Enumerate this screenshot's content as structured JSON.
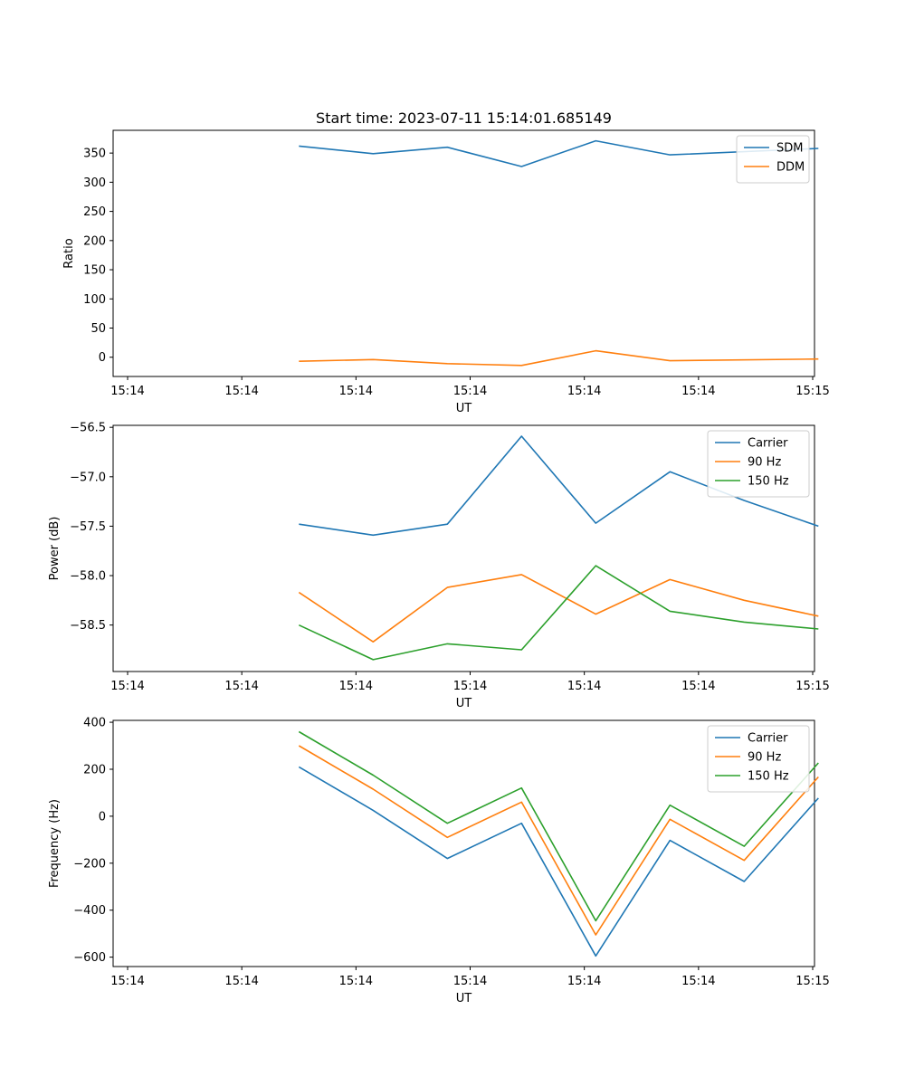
{
  "chart_data": [
    {
      "type": "line",
      "title": "Start time: 2023-07-11 15:14:01.685149",
      "xlabel": "UT",
      "ylabel": "Ratio",
      "x_tick_labels": [
        "15:14",
        "15:14",
        "15:14",
        "15:14",
        "15:14",
        "15:14",
        "15:15"
      ],
      "y_ticks": [
        0,
        50,
        100,
        150,
        200,
        250,
        300,
        350
      ],
      "y_tick_labels": [
        "0",
        "50",
        "100",
        "150",
        "200",
        "250",
        "300",
        "350"
      ],
      "ylim": [
        -33,
        389
      ],
      "series": [
        {
          "name": "SDM",
          "color": "#1f77b4",
          "points": [
            [
              1.5,
              362
            ],
            [
              2.15,
              349
            ],
            [
              2.8,
              360
            ],
            [
              3.45,
              327
            ],
            [
              4.1,
              371
            ],
            [
              4.75,
              347
            ],
            [
              6.05,
              358
            ]
          ]
        },
        {
          "name": "DDM",
          "color": "#ff7f0e",
          "points": [
            [
              1.5,
              -7
            ],
            [
              2.15,
              -4
            ],
            [
              2.8,
              -11
            ],
            [
              3.45,
              -14
            ],
            [
              4.1,
              11
            ],
            [
              4.75,
              -6
            ],
            [
              6.05,
              -3
            ]
          ]
        }
      ]
    },
    {
      "type": "line",
      "title": "",
      "xlabel": "UT",
      "ylabel": "Power (dB)",
      "x_tick_labels": [
        "15:14",
        "15:14",
        "15:14",
        "15:14",
        "15:14",
        "15:14",
        "15:15"
      ],
      "y_ticks": [
        -58.5,
        -58.0,
        -57.5,
        -57.0,
        -56.5
      ],
      "y_tick_labels": [
        "−58.5",
        "−58.0",
        "−57.5",
        "−57.0",
        "−56.5"
      ],
      "ylim": [
        -58.97,
        -56.48
      ],
      "series": [
        {
          "name": "Carrier",
          "color": "#1f77b4",
          "points": [
            [
              1.5,
              -57.48
            ],
            [
              2.15,
              -57.59
            ],
            [
              2.8,
              -57.48
            ],
            [
              3.45,
              -56.59
            ],
            [
              4.1,
              -57.47
            ],
            [
              4.75,
              -56.95
            ],
            [
              5.4,
              -57.24
            ],
            [
              6.05,
              -57.5
            ]
          ]
        },
        {
          "name": "90 Hz",
          "color": "#ff7f0e",
          "points": [
            [
              1.5,
              -58.17
            ],
            [
              2.15,
              -58.67
            ],
            [
              2.8,
              -58.12
            ],
            [
              3.45,
              -57.99
            ],
            [
              4.1,
              -58.39
            ],
            [
              4.75,
              -58.04
            ],
            [
              5.4,
              -58.25
            ],
            [
              6.05,
              -58.41
            ]
          ]
        },
        {
          "name": "150 Hz",
          "color": "#2ca02c",
          "points": [
            [
              1.5,
              -58.5
            ],
            [
              2.15,
              -58.85
            ],
            [
              2.8,
              -58.69
            ],
            [
              3.45,
              -58.75
            ],
            [
              4.1,
              -57.9
            ],
            [
              4.75,
              -58.36
            ],
            [
              5.4,
              -58.47
            ],
            [
              6.05,
              -58.54
            ]
          ]
        }
      ]
    },
    {
      "type": "line",
      "title": "",
      "xlabel": "UT",
      "ylabel": "Frequency (Hz)",
      "x_tick_labels": [
        "15:14",
        "15:14",
        "15:14",
        "15:14",
        "15:14",
        "15:14",
        "15:15"
      ],
      "y_ticks": [
        -600,
        -400,
        -200,
        0,
        200,
        400
      ],
      "y_tick_labels": [
        "−600",
        "−400",
        "−200",
        "0",
        "200",
        "400"
      ],
      "ylim": [
        -640,
        408
      ],
      "series": [
        {
          "name": "Carrier",
          "color": "#1f77b4",
          "points": [
            [
              1.5,
              210
            ],
            [
              2.15,
              25
            ],
            [
              2.8,
              -180
            ],
            [
              3.45,
              -30
            ],
            [
              4.1,
              -595
            ],
            [
              4.75,
              -103
            ],
            [
              5.4,
              -278
            ],
            [
              6.05,
              77
            ]
          ]
        },
        {
          "name": "90 Hz",
          "color": "#ff7f0e",
          "points": [
            [
              1.5,
              300
            ],
            [
              2.15,
              115
            ],
            [
              2.8,
              -90
            ],
            [
              3.45,
              60
            ],
            [
              4.1,
              -505
            ],
            [
              4.75,
              -13
            ],
            [
              5.4,
              -188
            ],
            [
              6.05,
              167
            ]
          ]
        },
        {
          "name": "150 Hz",
          "color": "#2ca02c",
          "points": [
            [
              1.5,
              360
            ],
            [
              2.15,
              175
            ],
            [
              2.8,
              -30
            ],
            [
              3.45,
              120
            ],
            [
              4.1,
              -445
            ],
            [
              4.75,
              47
            ],
            [
              5.4,
              -128
            ],
            [
              6.05,
              227
            ]
          ]
        }
      ]
    }
  ]
}
